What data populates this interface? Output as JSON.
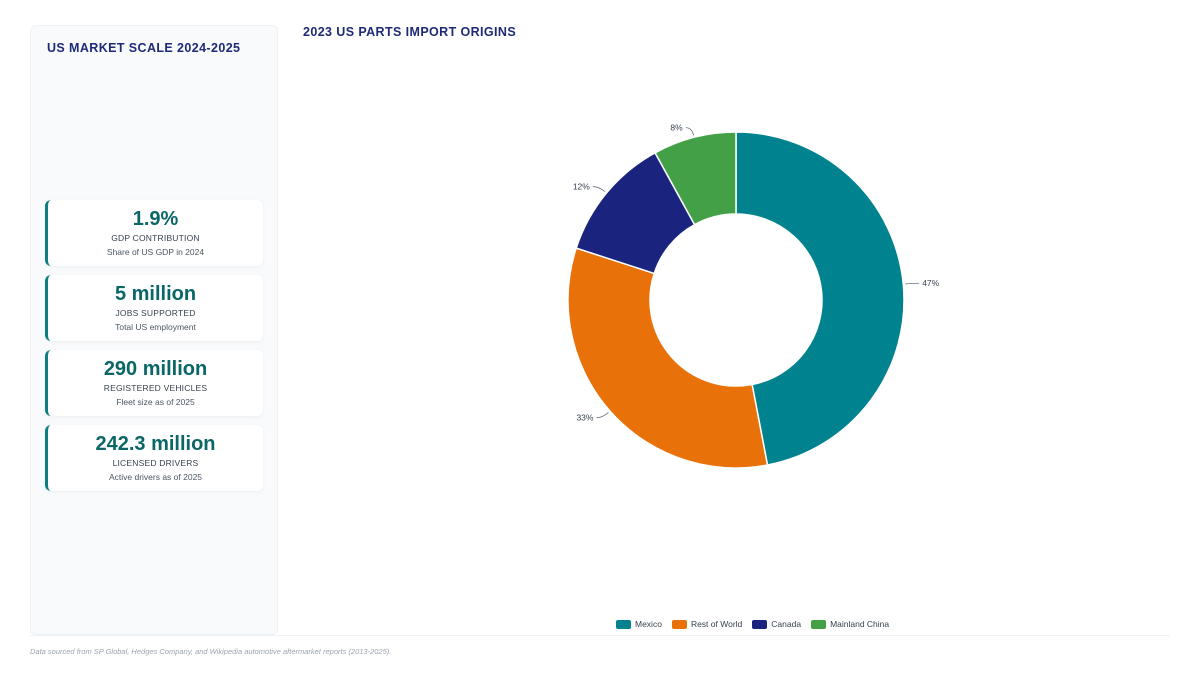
{
  "left_panel": {
    "title": "US MARKET SCALE 2024-2025",
    "stats": [
      {
        "value": "1.9%",
        "label": "GDP CONTRIBUTION",
        "sub": "Share of US GDP in 2024"
      },
      {
        "value": "5 million",
        "label": "JOBS SUPPORTED",
        "sub": "Total US employment"
      },
      {
        "value": "290 million",
        "label": "REGISTERED VEHICLES",
        "sub": "Fleet size as of 2025"
      },
      {
        "value": "242.3 million",
        "label": "LICENSED DRIVERS",
        "sub": "Active drivers as of 2025"
      }
    ]
  },
  "chart_data": {
    "type": "pie",
    "title": "2023 US PARTS IMPORT ORIGINS",
    "donut": true,
    "categories": [
      "Mexico",
      "Rest of World",
      "Canada",
      "Mainland China"
    ],
    "values": [
      47,
      33,
      12,
      8
    ],
    "labels": [
      "47%",
      "33%",
      "12%",
      "8%"
    ],
    "colors": [
      "#00838f",
      "#e8710a",
      "#1a237e",
      "#43a047"
    ],
    "legend": "bottom"
  },
  "footnote": "Data sourced from SP Global, Hedges Company, and Wikipedia automotive aftermarket reports (2013-2025)."
}
